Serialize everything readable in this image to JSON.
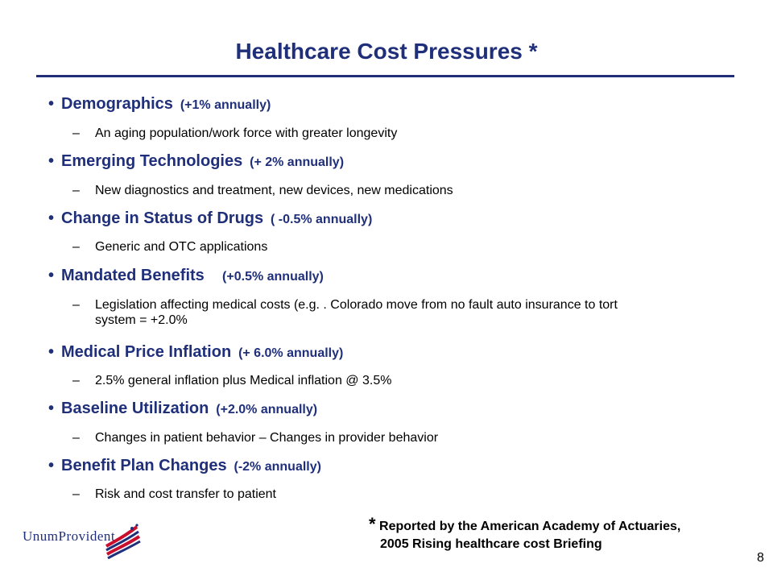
{
  "slide": {
    "title": "Healthcare Cost Pressures *",
    "page_number": "8"
  },
  "items": [
    {
      "bullet": "•",
      "main": "Demographics",
      "note": "(+1% annually)",
      "dash": "–",
      "sub": "An aging population/work force with greater longevity"
    },
    {
      "bullet": "•",
      "main": "Emerging Technologies",
      "note": "(+ 2% annually)",
      "dash": "–",
      "sub": "New diagnostics and treatment, new devices, new medications"
    },
    {
      "bullet": "•",
      "main": "Change in Status of Drugs",
      "note": "( -0.5% annually)",
      "dash": "–",
      "sub": "Generic and OTC applications"
    },
    {
      "bullet": "•",
      "main": "Mandated Benefits",
      "note": "(+0.5% annually)",
      "dash": "–",
      "sub": "Legislation affecting medical costs (e.g. . Colorado move from no fault auto insurance to tort system = +2.0%"
    },
    {
      "bullet": "•",
      "main": "Medical Price Inflation",
      "note": "(+ 6.0% annually)",
      "dash": "–",
      "sub": "2.5% general inflation plus Medical inflation @ 3.5%"
    },
    {
      "bullet": "•",
      "main": "Baseline Utilization",
      "note": "(+2.0% annually)",
      "dash": "–",
      "sub": "Changes in patient behavior – Changes in provider behavior"
    },
    {
      "bullet": "•",
      "main": "Benefit Plan Changes",
      "note": "(-2% annually)",
      "dash": "–",
      "sub": "Risk  and cost transfer to patient"
    }
  ],
  "footnote": {
    "star": "*",
    "line1": "Reported by the American Academy of Actuaries,",
    "line2": "2005 Rising healthcare cost Briefing"
  },
  "logo": {
    "text": "UnumProvident",
    "colors": {
      "blue": "#1f2f7a",
      "red": "#c8102e"
    }
  }
}
